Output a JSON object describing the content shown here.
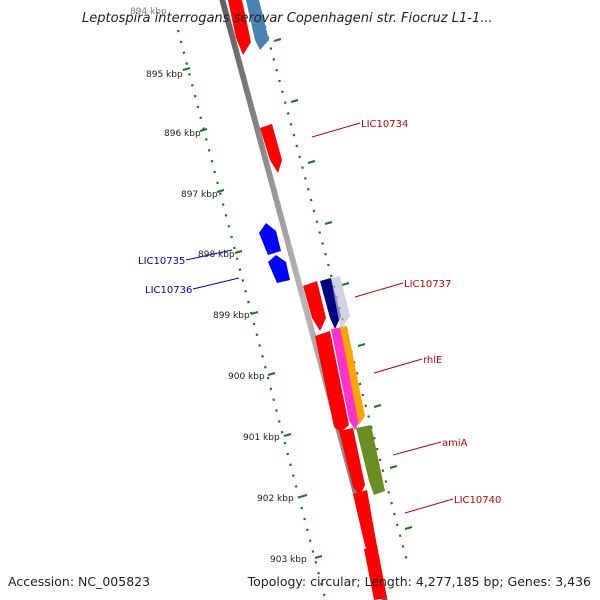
{
  "title": "Leptospira interrogans serovar Copenhageni str. Fiocruz L1-1...",
  "accession": "Accession: NC_005823",
  "summary": "Topology: circular; Length: 4,277,185 bp; Genes: 3,436",
  "colors": {
    "background": "#ffffff",
    "backbone": "#8c8c8c",
    "tick": "#1a7a1a",
    "gene_red": "#ff0000",
    "gene_blue": "#0000ff",
    "steelblue": "#4a82b4",
    "navy": "#000080",
    "orange": "#ffa500",
    "magenta": "#ff33cc",
    "olive": "#6b8e23",
    "label_red": "#cc0000",
    "label_blue": "#0000cc"
  },
  "kbp_labels": [
    {
      "text": "895 kbp",
      "kbp": 895
    },
    {
      "text": "896 kbp",
      "kbp": 896
    },
    {
      "text": "897 kbp",
      "kbp": 897
    },
    {
      "text": "898 kbp",
      "kbp": 898
    },
    {
      "text": "899 kbp",
      "kbp": 899
    },
    {
      "text": "900 kbp",
      "kbp": 900
    },
    {
      "text": "901 kbp",
      "kbp": 901
    },
    {
      "text": "902 kbp",
      "kbp": 902
    },
    {
      "text": "903 kbp",
      "kbp": 903
    }
  ],
  "gene_labels": [
    {
      "text": "LIC10734",
      "color": "#cc0000"
    },
    {
      "text": "LIC10737",
      "color": "#cc0000"
    },
    {
      "text": "rhlE",
      "color": "#cc0000"
    },
    {
      "text": "amiA",
      "color": "#cc0000"
    },
    {
      "text": "LIC10740",
      "color": "#cc0000"
    },
    {
      "text": "LIC10735",
      "color": "#0000cc"
    },
    {
      "text": "LIC10736",
      "color": "#0000cc"
    }
  ]
}
